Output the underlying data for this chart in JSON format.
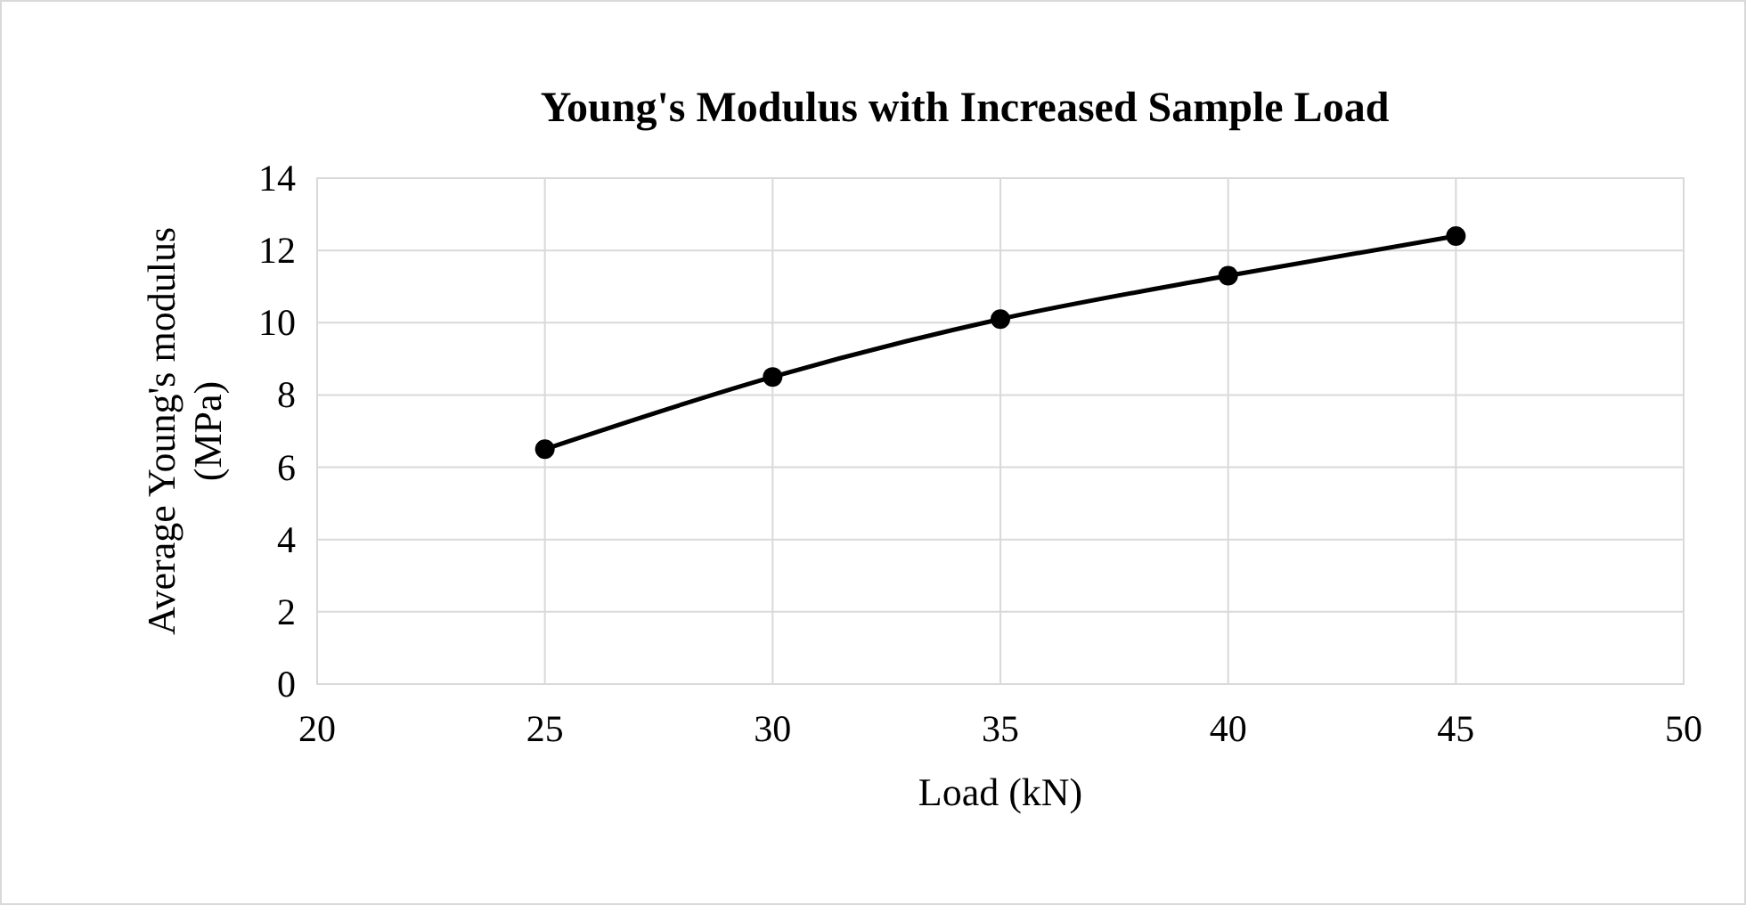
{
  "chart_data": {
    "type": "line",
    "title": "Young's Modulus with Increased Sample Load",
    "xlabel": "Load (kN)",
    "ylabel": "Average Young's modulus (MPa)",
    "x": [
      25,
      30,
      35,
      40,
      45
    ],
    "series": [
      {
        "color": "#000000",
        "values": [
          6.5,
          8.5,
          10.1,
          11.3,
          12.4
        ]
      }
    ],
    "xlim": [
      20,
      50
    ],
    "xticks": [
      20,
      25,
      30,
      35,
      40,
      45,
      50
    ],
    "ylim": [
      0,
      14
    ],
    "yticks": [
      0,
      2,
      4,
      6,
      8,
      10,
      12,
      14
    ],
    "grid": true,
    "marker": "circle",
    "line_style": "solid"
  }
}
